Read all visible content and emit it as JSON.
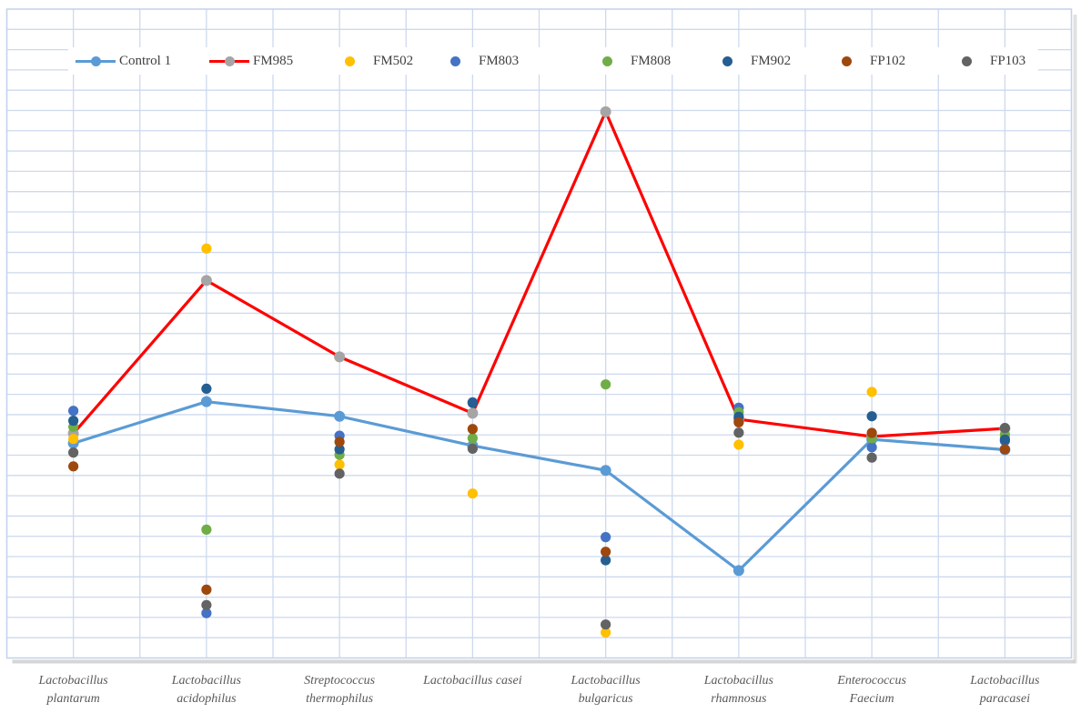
{
  "chart_data": {
    "type": "line+scatter",
    "title": "",
    "legend_position": "top",
    "grid_on": true,
    "categories": [
      [
        "Lactobacillus",
        "plantarum"
      ],
      [
        "Lactobacillus",
        "acidophilus"
      ],
      [
        "Streptococcus",
        "thermophilus"
      ],
      [
        "Lactobacillus casei"
      ],
      [
        "Lactobacillus",
        "bulgaricus"
      ],
      [
        "Lactobacillus",
        "rhamnosus"
      ],
      [
        "Enterococcus",
        "Faecium"
      ],
      [
        "Lactobacillus",
        "paracasei"
      ]
    ],
    "y_axis": {
      "tick_labels_visible": false,
      "gridline_count": 32,
      "ylim_gridline_units": [
        0,
        32
      ]
    },
    "x_axis": {
      "vertical_gridlines_per_category": 2
    },
    "values_unit": "horizontal-gridline units above the bottom axis (chart shows no numeric y labels)",
    "series": [
      {
        "name": "Control 1",
        "kind": "line",
        "line_color": "#5B9BD5",
        "marker_color": "#5B9BD5",
        "values": [
          10.59,
          12.64,
          11.92,
          10.47,
          9.25,
          4.31,
          10.78,
          10.27
        ]
      },
      {
        "name": "FM985",
        "kind": "line",
        "line_color": "#FF0000",
        "marker_color": "#A5A5A5",
        "values": [
          11.07,
          18.62,
          14.85,
          12.07,
          26.94,
          11.77,
          10.92,
          11.32
        ]
      },
      {
        "name": "FM502",
        "kind": "scatter",
        "marker_color": "#FFC000",
        "values": [
          10.8,
          20.19,
          9.54,
          8.11,
          1.26,
          10.52,
          13.12,
          10.87
        ]
      },
      {
        "name": "FM803",
        "kind": "scatter",
        "marker_color": "#4472C4",
        "values": [
          12.19,
          2.21,
          10.96,
          12.61,
          5.96,
          12.34,
          10.39,
          10.7
        ]
      },
      {
        "name": "FM808",
        "kind": "scatter",
        "marker_color": "#70AD47",
        "values": [
          11.4,
          6.33,
          10.02,
          10.84,
          13.49,
          12.12,
          10.84,
          11.02
        ]
      },
      {
        "name": "FM902",
        "kind": "scatter",
        "marker_color": "#255E91",
        "values": [
          11.7,
          13.28,
          10.29,
          12.58,
          4.82,
          11.89,
          11.92,
          10.77
        ]
      },
      {
        "name": "FP102",
        "kind": "scatter",
        "marker_color": "#9E480E",
        "values": [
          9.45,
          3.37,
          10.66,
          11.29,
          5.24,
          11.62,
          11.1,
          10.29
        ]
      },
      {
        "name": "FP103",
        "kind": "scatter",
        "marker_color": "#636363",
        "values": [
          10.13,
          2.61,
          9.09,
          10.32,
          1.65,
          11.11,
          9.88,
          11.34
        ]
      }
    ],
    "colors": {
      "gridline": "#CDD9EE",
      "plot_border": "#C3D2EA",
      "border_shadow": "#C8C8C8",
      "axis_label_text": "#595959",
      "legend_text": "#404040"
    }
  }
}
